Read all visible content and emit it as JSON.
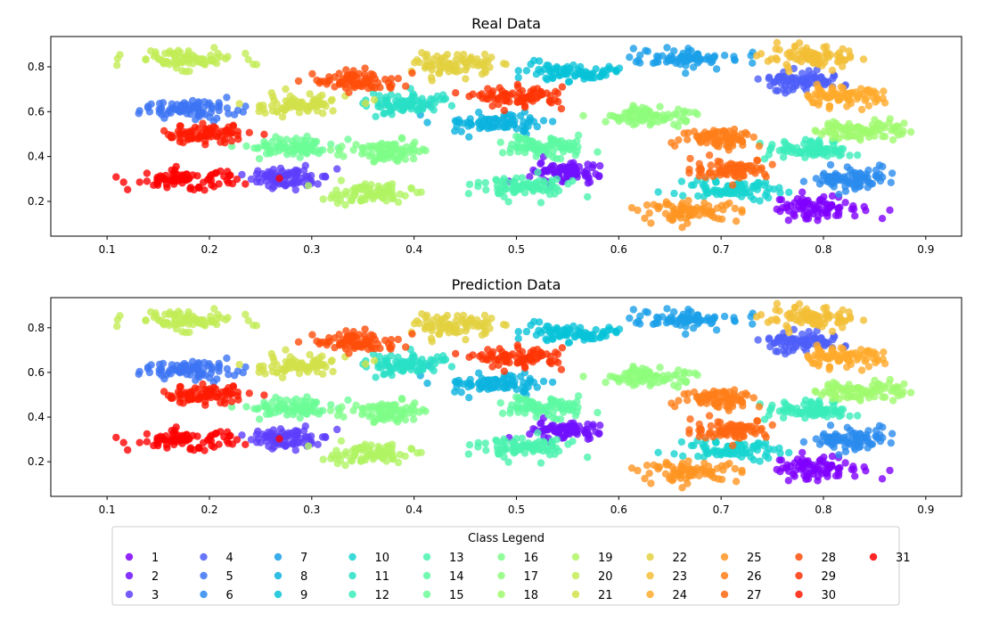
{
  "chart_data": [
    {
      "type": "scatter",
      "title": "Real Data",
      "xlabel": "",
      "ylabel": "",
      "xlim": [
        0.055,
        1.945
      ],
      "ylim": [
        0.045,
        0.935
      ],
      "xticks": [
        "0.1",
        "0.2",
        "0.3",
        "0.4",
        "0.5",
        "0.6",
        "0.7",
        "0.8",
        "0.9"
      ],
      "yticks": [
        "0.2",
        "0.4",
        "0.6",
        "0.8"
      ],
      "grid": false,
      "clusters": [
        {
          "class": 1,
          "x": [
            0.745,
            0.835
          ],
          "y": [
            0.12,
            0.22
          ]
        },
        {
          "class": 2,
          "x": [
            0.51,
            0.59
          ],
          "y": [
            0.28,
            0.38
          ]
        },
        {
          "class": 3,
          "x": [
            0.24,
            0.31
          ],
          "y": [
            0.25,
            0.35
          ]
        },
        {
          "class": 4,
          "x": [
            0.74,
            0.82
          ],
          "y": [
            0.69,
            0.78
          ]
        },
        {
          "class": 5,
          "x": [
            0.13,
            0.23
          ],
          "y": [
            0.57,
            0.66
          ]
        },
        {
          "class": 6,
          "x": [
            0.79,
            0.86
          ],
          "y": [
            0.25,
            0.35
          ]
        },
        {
          "class": 7,
          "x": [
            0.61,
            0.72
          ],
          "y": [
            0.79,
            0.88
          ]
        },
        {
          "class": 8,
          "x": [
            0.42,
            0.53
          ],
          "y": [
            0.51,
            0.6
          ]
        },
        {
          "class": 9,
          "x": [
            0.51,
            0.6
          ],
          "y": [
            0.73,
            0.82
          ]
        },
        {
          "class": 10,
          "x": [
            0.66,
            0.76
          ],
          "y": [
            0.21,
            0.3
          ]
        },
        {
          "class": 11,
          "x": [
            0.35,
            0.44
          ],
          "y": [
            0.59,
            0.68
          ]
        },
        {
          "class": 12,
          "x": [
            0.74,
            0.83
          ],
          "y": [
            0.39,
            0.47
          ]
        },
        {
          "class": 13,
          "x": [
            0.46,
            0.56
          ],
          "y": [
            0.21,
            0.32
          ]
        },
        {
          "class": 14,
          "x": [
            0.48,
            0.57
          ],
          "y": [
            0.4,
            0.49
          ]
        },
        {
          "class": 15,
          "x": [
            0.23,
            0.33
          ],
          "y": [
            0.4,
            0.48
          ]
        },
        {
          "class": 16,
          "x": [
            0.33,
            0.42
          ],
          "y": [
            0.38,
            0.47
          ]
        },
        {
          "class": 17,
          "x": [
            0.59,
            0.68
          ],
          "y": [
            0.54,
            0.63
          ]
        },
        {
          "class": 18,
          "x": [
            0.79,
            0.88
          ],
          "y": [
            0.47,
            0.57
          ]
        },
        {
          "class": 19,
          "x": [
            0.31,
            0.4
          ],
          "y": [
            0.19,
            0.28
          ]
        },
        {
          "class": 20,
          "x": [
            0.12,
            0.23
          ],
          "y": [
            0.79,
            0.88
          ]
        },
        {
          "class": 21,
          "x": [
            0.23,
            0.34
          ],
          "y": [
            0.58,
            0.68
          ]
        },
        {
          "class": 22,
          "x": [
            0.4,
            0.48
          ],
          "y": [
            0.76,
            0.86
          ]
        },
        {
          "class": 23,
          "x": [
            0.74,
            0.84
          ],
          "y": [
            0.79,
            0.89
          ]
        },
        {
          "class": 24,
          "x": [
            0.77,
            0.86
          ],
          "y": [
            0.62,
            0.71
          ]
        },
        {
          "class": 25,
          "x": [
            0.62,
            0.72
          ],
          "y": [
            0.11,
            0.2
          ]
        },
        {
          "class": 26,
          "x": [
            0.66,
            0.74
          ],
          "y": [
            0.44,
            0.53
          ]
        },
        {
          "class": 27,
          "x": [
            0.67,
            0.75
          ],
          "y": [
            0.3,
            0.39
          ]
        },
        {
          "class": 28,
          "x": [
            0.3,
            0.39
          ],
          "y": [
            0.69,
            0.78
          ]
        },
        {
          "class": 29,
          "x": [
            0.46,
            0.55
          ],
          "y": [
            0.62,
            0.71
          ]
        },
        {
          "class": 30,
          "x": [
            0.15,
            0.24
          ],
          "y": [
            0.46,
            0.54
          ]
        },
        {
          "class": 31,
          "x": [
            0.12,
            0.23
          ],
          "y": [
            0.25,
            0.34
          ]
        }
      ]
    },
    {
      "type": "scatter",
      "title": "Prediction Data",
      "xlabel": "",
      "ylabel": "",
      "xlim": [
        0.055,
        1.945
      ],
      "ylim": [
        0.045,
        0.935
      ],
      "xticks": [
        "0.1",
        "0.2",
        "0.3",
        "0.4",
        "0.5",
        "0.6",
        "0.7",
        "0.8",
        "0.9"
      ],
      "yticks": [
        "0.2",
        "0.4",
        "0.6",
        "0.8"
      ],
      "grid": false,
      "clusters": [
        {
          "class": 1,
          "x": [
            0.745,
            0.835
          ],
          "y": [
            0.12,
            0.22
          ]
        },
        {
          "class": 2,
          "x": [
            0.51,
            0.59
          ],
          "y": [
            0.3,
            0.38
          ]
        },
        {
          "class": 3,
          "x": [
            0.24,
            0.31
          ],
          "y": [
            0.25,
            0.35
          ]
        },
        {
          "class": 4,
          "x": [
            0.74,
            0.82
          ],
          "y": [
            0.69,
            0.78
          ]
        },
        {
          "class": 5,
          "x": [
            0.13,
            0.23
          ],
          "y": [
            0.57,
            0.66
          ]
        },
        {
          "class": 6,
          "x": [
            0.79,
            0.86
          ],
          "y": [
            0.25,
            0.35
          ]
        },
        {
          "class": 7,
          "x": [
            0.61,
            0.72
          ],
          "y": [
            0.79,
            0.88
          ]
        },
        {
          "class": 8,
          "x": [
            0.42,
            0.53
          ],
          "y": [
            0.51,
            0.6
          ]
        },
        {
          "class": 9,
          "x": [
            0.51,
            0.6
          ],
          "y": [
            0.73,
            0.82
          ]
        },
        {
          "class": 10,
          "x": [
            0.66,
            0.76
          ],
          "y": [
            0.21,
            0.3
          ]
        },
        {
          "class": 11,
          "x": [
            0.35,
            0.44
          ],
          "y": [
            0.59,
            0.68
          ]
        },
        {
          "class": 12,
          "x": [
            0.74,
            0.83
          ],
          "y": [
            0.39,
            0.47
          ]
        },
        {
          "class": 13,
          "x": [
            0.46,
            0.56
          ],
          "y": [
            0.21,
            0.32
          ]
        },
        {
          "class": 14,
          "x": [
            0.48,
            0.57
          ],
          "y": [
            0.4,
            0.49
          ]
        },
        {
          "class": 15,
          "x": [
            0.23,
            0.33
          ],
          "y": [
            0.4,
            0.48
          ]
        },
        {
          "class": 16,
          "x": [
            0.33,
            0.42
          ],
          "y": [
            0.38,
            0.47
          ]
        },
        {
          "class": 17,
          "x": [
            0.59,
            0.68
          ],
          "y": [
            0.54,
            0.63
          ]
        },
        {
          "class": 18,
          "x": [
            0.79,
            0.88
          ],
          "y": [
            0.47,
            0.57
          ]
        },
        {
          "class": 19,
          "x": [
            0.31,
            0.4
          ],
          "y": [
            0.19,
            0.28
          ]
        },
        {
          "class": 20,
          "x": [
            0.12,
            0.23
          ],
          "y": [
            0.79,
            0.88
          ]
        },
        {
          "class": 21,
          "x": [
            0.23,
            0.34
          ],
          "y": [
            0.58,
            0.68
          ]
        },
        {
          "class": 22,
          "x": [
            0.4,
            0.48
          ],
          "y": [
            0.76,
            0.86
          ]
        },
        {
          "class": 23,
          "x": [
            0.74,
            0.84
          ],
          "y": [
            0.79,
            0.89
          ]
        },
        {
          "class": 24,
          "x": [
            0.77,
            0.86
          ],
          "y": [
            0.62,
            0.71
          ]
        },
        {
          "class": 25,
          "x": [
            0.62,
            0.72
          ],
          "y": [
            0.11,
            0.2
          ]
        },
        {
          "class": 26,
          "x": [
            0.66,
            0.74
          ],
          "y": [
            0.44,
            0.53
          ]
        },
        {
          "class": 27,
          "x": [
            0.67,
            0.75
          ],
          "y": [
            0.3,
            0.39
          ]
        },
        {
          "class": 28,
          "x": [
            0.3,
            0.39
          ],
          "y": [
            0.69,
            0.78
          ]
        },
        {
          "class": 29,
          "x": [
            0.46,
            0.55
          ],
          "y": [
            0.62,
            0.71
          ]
        },
        {
          "class": 30,
          "x": [
            0.15,
            0.24
          ],
          "y": [
            0.46,
            0.54
          ]
        },
        {
          "class": 31,
          "x": [
            0.12,
            0.23
          ],
          "y": [
            0.25,
            0.34
          ]
        }
      ]
    }
  ],
  "legend": {
    "title": "Class Legend",
    "columns": 9,
    "entries": [
      {
        "label": "1",
        "color": "#8000ff"
      },
      {
        "label": "2",
        "color": "#7010ff"
      },
      {
        "label": "3",
        "color": "#5e3ffd"
      },
      {
        "label": "4",
        "color": "#4d5ef9"
      },
      {
        "label": "5",
        "color": "#3c74f4"
      },
      {
        "label": "6",
        "color": "#2b8bee"
      },
      {
        "label": "7",
        "color": "#1a9fe8"
      },
      {
        "label": "8",
        "color": "#0bb3df"
      },
      {
        "label": "9",
        "color": "#08c3d8"
      },
      {
        "label": "10",
        "color": "#17d4cf"
      },
      {
        "label": "11",
        "color": "#28e0c5"
      },
      {
        "label": "12",
        "color": "#3aecba"
      },
      {
        "label": "13",
        "color": "#4af3ae"
      },
      {
        "label": "14",
        "color": "#5cf9a2"
      },
      {
        "label": "15",
        "color": "#6cfc96"
      },
      {
        "label": "16",
        "color": "#7efe88"
      },
      {
        "label": "17",
        "color": "#8efd7c"
      },
      {
        "label": "18",
        "color": "#a0fa6e"
      },
      {
        "label": "19",
        "color": "#b0f463"
      },
      {
        "label": "20",
        "color": "#c2ec56"
      },
      {
        "label": "21",
        "color": "#d2e14a"
      },
      {
        "label": "22",
        "color": "#e2d13f"
      },
      {
        "label": "23",
        "color": "#f2be35"
      },
      {
        "label": "24",
        "color": "#ffaa2b"
      },
      {
        "label": "25",
        "color": "#ff9522"
      },
      {
        "label": "26",
        "color": "#ff7e19"
      },
      {
        "label": "27",
        "color": "#ff6611"
      },
      {
        "label": "28",
        "color": "#ff4d0a"
      },
      {
        "label": "29",
        "color": "#ff3405"
      },
      {
        "label": "30",
        "color": "#ff1a02"
      },
      {
        "label": "31",
        "color": "#ff0000"
      }
    ]
  }
}
